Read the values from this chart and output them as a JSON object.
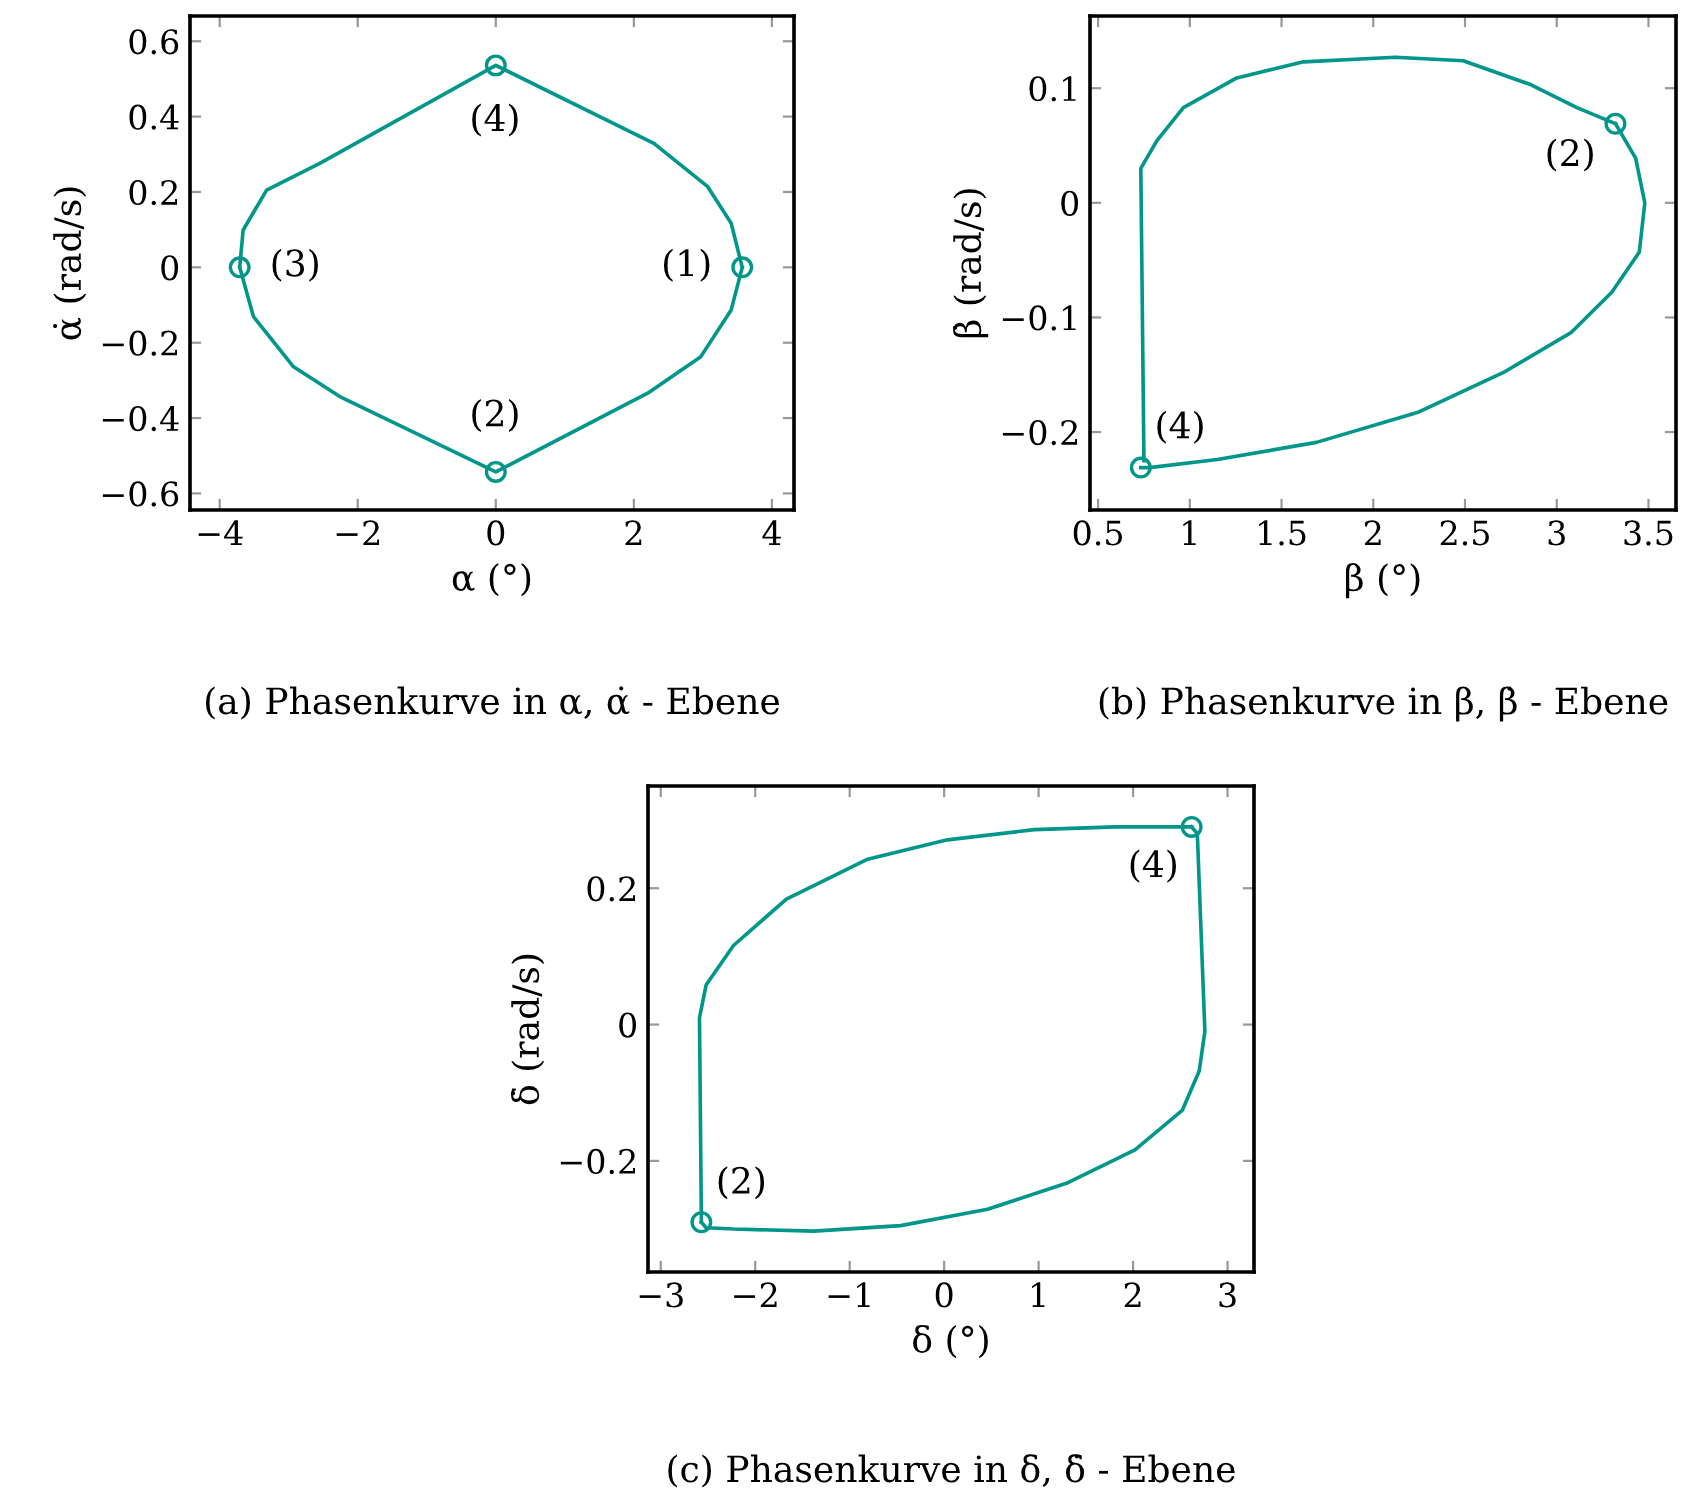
{
  "chart_data": [
    {
      "type": "line",
      "xlabel": "α (°)",
      "ylabel": "α̇ (rad/s)",
      "annotations": [
        "(a) Phasenkurve in α, α̇ - Ebene",
        {
          "text": "(1)",
          "x": 3.57,
          "y": 0
        },
        {
          "text": "(2)",
          "x": 0,
          "y": -0.543
        },
        {
          "text": "(3)",
          "x": -3.71,
          "y": 0
        },
        {
          "text": "(4)",
          "x": 0,
          "y": 0.536
        }
      ],
      "series": [
        {
          "color": "#00968a",
          "x": [
            -3.71,
            -3.66,
            -3.32,
            -2.55,
            0,
            2.29,
            3.07,
            3.41,
            3.57
          ],
          "values": [
            0,
            0.099,
            0.205,
            0.276,
            0.536,
            0.329,
            0.214,
            0.117,
            0
          ]
        },
        {
          "color": "#00968a",
          "x": [
            -3.71,
            -3.51,
            -2.93,
            -2.26,
            0,
            2.2,
            2.97,
            3.41,
            3.57
          ],
          "values": [
            0,
            -0.131,
            -0.264,
            -0.343,
            -0.543,
            -0.334,
            -0.237,
            -0.113,
            0
          ]
        },
        {
          "type": "scatter",
          "marker": "circle",
          "color": "#00968a",
          "x": [
            3.57,
            0,
            -3.71,
            0
          ],
          "values": [
            0,
            -0.543,
            0,
            0.536
          ]
        }
      ],
      "xlim": [
        -4.43,
        4.32
      ],
      "ylim": [
        -0.644,
        0.667
      ],
      "xticks": [
        {
          "value": -4,
          "label": "−4"
        },
        {
          "value": -2,
          "label": "−2"
        },
        0,
        2,
        4
      ],
      "yticks": [
        {
          "value": -0.6,
          "label": "−0.6"
        },
        {
          "value": -0.4,
          "label": "−0.4"
        },
        {
          "value": -0.2,
          "label": "−0.2"
        },
        0,
        0.2,
        0.4,
        0.6
      ],
      "grid": false,
      "legend": false
    },
    {
      "type": "line",
      "xlabel": "β (°)",
      "ylabel": "β̇ (rad/s)",
      "annotations": [
        "(b) Phasenkurve in β, β̇ - Ebene",
        {
          "text": "(2)",
          "x": 3.32,
          "y": 0.069
        },
        {
          "text": "(4)",
          "x": 0.733,
          "y": -0.231
        }
      ],
      "series": [
        {
          "color": "#00968a",
          "x": [
            0.75,
            0.733,
            0.82,
            0.965,
            1.256,
            1.62,
            2.12,
            2.49,
            2.86,
            3.11,
            3.32
          ],
          "values": [
            -0.225,
            0.03,
            0.054,
            0.083,
            0.109,
            0.123,
            0.127,
            0.124,
            0.103,
            0.083,
            0.069
          ]
        },
        {
          "color": "#00968a",
          "x": [
            3.32,
            3.43,
            3.48,
            3.45,
            3.3,
            3.08,
            2.71,
            2.24,
            1.69,
            1.15,
            0.78,
            0.733
          ],
          "values": [
            0.069,
            0.039,
            0,
            -0.043,
            -0.078,
            -0.113,
            -0.148,
            -0.183,
            -0.209,
            -0.224,
            -0.231,
            -0.231
          ]
        },
        {
          "type": "scatter",
          "marker": "circle",
          "color": "#00968a",
          "x": [
            3.32,
            0.733
          ],
          "values": [
            0.069,
            -0.231
          ]
        }
      ],
      "xlim": [
        0.456,
        3.65
      ],
      "ylim": [
        -0.268,
        0.163
      ],
      "xticks": [
        0.5,
        1,
        1.5,
        2,
        2.5,
        3,
        3.5
      ],
      "yticks": [
        {
          "value": -0.2,
          "label": "−0.2"
        },
        {
          "value": -0.1,
          "label": "−0.1"
        },
        0,
        0.1
      ],
      "grid": false,
      "legend": false
    },
    {
      "type": "line",
      "xlabel": "δ (°)",
      "ylabel": "δ̇ (rad/s)",
      "annotations": [
        "(c) Phasenkurve in δ, δ̇ - Ebene",
        {
          "text": "(4)",
          "x": 2.62,
          "y": 0.29
        },
        {
          "text": "(2)",
          "x": -2.57,
          "y": -0.29
        }
      ],
      "series": [
        {
          "color": "#00968a",
          "x": [
            2.62,
            2.68,
            2.76,
            2.7,
            2.52,
            2.02,
            1.31,
            0.46,
            -0.46,
            -1.38,
            -2.23,
            -2.52,
            -2.57
          ],
          "values": [
            0.29,
            0.28,
            -0.01,
            -0.068,
            -0.126,
            -0.184,
            -0.232,
            -0.271,
            -0.295,
            -0.303,
            -0.3,
            -0.298,
            -0.29
          ]
        },
        {
          "color": "#00968a",
          "x": [
            -2.57,
            -2.59,
            -2.52,
            -2.23,
            -1.67,
            -0.82,
            0.035,
            0.957,
            1.81,
            2.62
          ],
          "values": [
            -0.29,
            0.01,
            0.058,
            0.116,
            0.184,
            0.242,
            0.271,
            0.286,
            0.29,
            0.29
          ]
        },
        {
          "type": "scatter",
          "marker": "circle",
          "color": "#00968a",
          "x": [
            2.62,
            -2.57
          ],
          "values": [
            0.29,
            -0.29
          ]
        }
      ],
      "xlim": [
        -3.135,
        3.28
      ],
      "ylim": [
        -0.363,
        0.35
      ],
      "xticks": [
        {
          "value": -3,
          "label": "−3"
        },
        {
          "value": -2,
          "label": "−2"
        },
        {
          "value": -1,
          "label": "−1"
        },
        0,
        1,
        2,
        3
      ],
      "yticks": [
        {
          "value": -0.2,
          "label": "−0.2"
        },
        0,
        0.2
      ],
      "grid": false,
      "legend": false
    }
  ]
}
